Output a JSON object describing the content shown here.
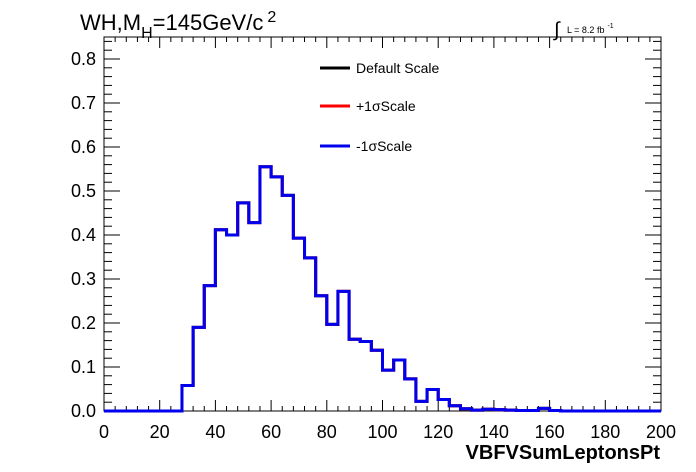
{
  "chart_data": {
    "type": "line",
    "title_parts": {
      "main": "WH,M",
      "sub": "H",
      "rest": "=145GeV/c",
      "sup": "2"
    },
    "lumi": {
      "integral": "∫",
      "text": "L = 8.2 fb",
      "sup": "-1"
    },
    "xlabel": "VBFVSumLeptonsPt",
    "ylabel": "",
    "xlim": [
      0,
      200
    ],
    "ylim": [
      0,
      0.85
    ],
    "x_ticks": [
      "0",
      "20",
      "40",
      "60",
      "80",
      "100",
      "120",
      "140",
      "160",
      "180",
      "200"
    ],
    "y_ticks": [
      "0.0",
      "0.1",
      "0.2",
      "0.3",
      "0.4",
      "0.5",
      "0.6",
      "0.7",
      "0.8"
    ],
    "bin_width": 4,
    "bin_edges_start": 0,
    "legend_position": "top-center",
    "series": [
      {
        "name": "Default Scale",
        "color": "#000000",
        "values": [
          0,
          0,
          0,
          0,
          0,
          0,
          0,
          0.058,
          0.19,
          0.285,
          0.412,
          0.4,
          0.473,
          0.428,
          0.555,
          0.532,
          0.49,
          0.393,
          0.348,
          0.262,
          0.197,
          0.272,
          0.163,
          0.158,
          0.138,
          0.093,
          0.116,
          0.073,
          0.022,
          0.049,
          0.026,
          0.012,
          0.005,
          0.002,
          0.004,
          0.003,
          0.002,
          0.001,
          0.001,
          0.006,
          0.001,
          0,
          0,
          0,
          0,
          0,
          0,
          0,
          0,
          0
        ]
      },
      {
        "name": "+1σScale",
        "color": "#ff0000",
        "values": [
          0,
          0,
          0,
          0,
          0,
          0,
          0,
          0.058,
          0.19,
          0.285,
          0.412,
          0.4,
          0.473,
          0.428,
          0.555,
          0.532,
          0.49,
          0.393,
          0.348,
          0.262,
          0.197,
          0.272,
          0.163,
          0.158,
          0.138,
          0.093,
          0.116,
          0.073,
          0.022,
          0.049,
          0.026,
          0.012,
          0.005,
          0.002,
          0.004,
          0.003,
          0.002,
          0.001,
          0.001,
          0.006,
          0.001,
          0,
          0,
          0,
          0,
          0,
          0,
          0,
          0,
          0
        ]
      },
      {
        "name": "-1σScale",
        "color": "#0000ee",
        "values": [
          0,
          0,
          0,
          0,
          0,
          0,
          0,
          0.058,
          0.19,
          0.285,
          0.412,
          0.4,
          0.473,
          0.428,
          0.555,
          0.532,
          0.49,
          0.393,
          0.348,
          0.262,
          0.197,
          0.272,
          0.163,
          0.158,
          0.138,
          0.093,
          0.116,
          0.073,
          0.022,
          0.049,
          0.026,
          0.012,
          0.005,
          0.002,
          0.004,
          0.003,
          0.002,
          0.001,
          0.001,
          0.006,
          0.001,
          0,
          0,
          0,
          0,
          0,
          0,
          0,
          0,
          0
        ]
      }
    ]
  }
}
